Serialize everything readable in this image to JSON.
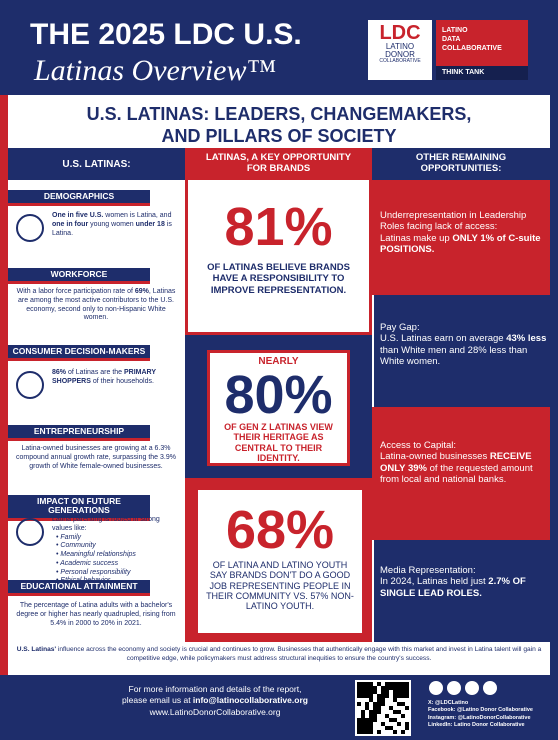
{
  "header": {
    "title": "THE 2025 LDC U.S.",
    "subtitle": "Latinas Overview™",
    "logo": {
      "mark": "LDC",
      "name": [
        "LATINO",
        "DONOR",
        "COLLABORATIVE"
      ],
      "partner": [
        "LATINO",
        "DATA",
        "COLLABORATIVE"
      ],
      "tag": "THINK TANK"
    }
  },
  "banner": [
    "U.S. LATINAS: LEADERS, CHANGEMAKERS,",
    "AND PILLARS OF SOCIETY"
  ],
  "columns": {
    "left": "U.S. LATINAS:",
    "middle": "LATINAS, A KEY OPPORTUNITY FOR BRANDS",
    "right": "OTHER REMAINING OPPORTUNITIES:"
  },
  "sections": [
    {
      "heading": "DEMOGRAPHICS",
      "runs": [
        {
          "text": "One in five U.S.",
          "bold": true
        },
        {
          "text": " women is Latina, and ",
          "bold": false
        },
        {
          "text": "one in four",
          "bold": true
        },
        {
          "text": " young women ",
          "bold": false
        },
        {
          "text": "under 18",
          "bold": true
        },
        {
          "text": " is Latina.",
          "bold": false
        }
      ]
    },
    {
      "heading": "WORKFORCE",
      "runs": [
        {
          "text": "With a labor force participation rate of ",
          "bold": false
        },
        {
          "text": "69%",
          "bold": true
        },
        {
          "text": ", Latinas are among the most active contributors to the U.S. economy, second only to non-Hispanic White women.",
          "bold": false
        }
      ]
    },
    {
      "heading": "CONSUMER DECISION-MAKERS",
      "runs": [
        {
          "text": "86%",
          "bold": true
        },
        {
          "text": " of Latinas are the ",
          "bold": false
        },
        {
          "text": "PRIMARY SHOPPERS",
          "bold": true
        },
        {
          "text": " of their households.",
          "bold": false
        }
      ]
    },
    {
      "heading": "ENTREPRENEURSHIP",
      "runs": [
        {
          "text": "Latina-owned businesses are growing at a 6.3% compound annual growth rate, surpassing the 3.9% growth of White female-owned businesses.",
          "bold": false
        }
      ]
    },
    {
      "heading": "IMPACT ON FUTURE GENERATIONS",
      "runs": [
        {
          "text": "Latina parenting is rooted in strong values like:",
          "bold": false
        }
      ],
      "items": [
        "Family",
        "Community",
        "Meaningful relationships",
        "Academic success",
        "Personal responsibility",
        "Ethical behavior"
      ]
    },
    {
      "heading": "EDUCATIONAL ATTAINMENT",
      "runs": [
        {
          "text": "The percentage of Latina adults with a bachelor's degree or higher has nearly quadrupled, rising from 5.4% in 2000 to 20% in 2021.",
          "bold": false
        }
      ]
    }
  ],
  "stats": [
    {
      "figure": "81%",
      "text": "OF LATINAS BELIEVE BRANDS HAVE A RESPONSIBILITY TO IMPROVE REPRESENTATION."
    },
    {
      "prefix": "NEARLY",
      "figure": "80%",
      "text": "OF GEN Z LATINAS VIEW THEIR HERITAGE AS CENTRAL TO THEIR IDENTITY."
    },
    {
      "figure": "68%",
      "text": "OF LATINA AND LATINO YOUTH SAY BRANDS DON'T DO A GOOD JOB REPRESENTING PEOPLE IN THEIR COMMUNITY VS. 57% NON-LATINO YOUTH."
    }
  ],
  "opportunities": [
    {
      "label": "Underrepresentation in Leadership Roles facing lack of access:",
      "runs": [
        {
          "text": "Latinas make up ",
          "bold": false
        },
        {
          "text": "ONLY 1% of C-suite POSITIONS.",
          "bold": true
        }
      ]
    },
    {
      "label": "Pay Gap:",
      "runs": [
        {
          "text": "U.S. Latinas earn on average ",
          "bold": false
        },
        {
          "text": "43% less",
          "bold": true
        },
        {
          "text": " than White men and 28% less than White women.",
          "bold": false
        }
      ]
    },
    {
      "label": "Access to Capital:",
      "runs": [
        {
          "text": "Latina-owned businesses ",
          "bold": false
        },
        {
          "text": "RECEIVE ONLY 39%",
          "bold": true
        },
        {
          "text": " of the requested amount from local and national banks.",
          "bold": false
        }
      ]
    },
    {
      "label": "Media Representation:",
      "runs": [
        {
          "text": "In 2024, Latinas held just ",
          "bold": false
        },
        {
          "text": "2.7% OF SINGLE LEAD ROLES.",
          "bold": true
        }
      ]
    }
  ],
  "closing": [
    {
      "text": "U.S. Latinas'",
      "bold": true
    },
    {
      "text": " influence across the economy and society is crucial and continues to grow. Businesses that authentically engage with this market and invest in Latina talent will gain a competitive edge, while policymakers must address structural inequities to ensure the country's success.",
      "bold": false
    }
  ],
  "footer": {
    "contact": [
      "For more information and details of the report,",
      "please email us at ",
      "info@latinocollaborative.org",
      "www.LatinoDonorCollaborative.org"
    ],
    "social": [
      "X: @LDCLatino",
      "Facebook: @Latino Donor Collaborative",
      "Instagram: @LatinoDonorCollaborative",
      "LinkedIn: Latino Donor Collaborative"
    ]
  }
}
